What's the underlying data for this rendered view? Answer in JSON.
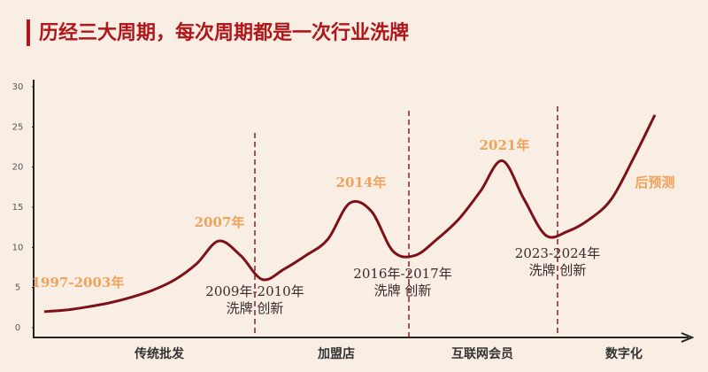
{
  "chart_data": {
    "type": "line",
    "title": "历经三大周期，每次周期都是一次行业洗牌",
    "categories": [
      null,
      null,
      null,
      null,
      null,
      null,
      null,
      null,
      null,
      null,
      null,
      null,
      null,
      null,
      null,
      null,
      null,
      null,
      null,
      null,
      null,
      null,
      null,
      null,
      null,
      null,
      null,
      null,
      null
    ],
    "series": [
      {
        "color": "#7d1018",
        "values": [
          2,
          2.2,
          2.6,
          3.1,
          3.8,
          4.7,
          6,
          8,
          10.8,
          9,
          6,
          7.3,
          9,
          11,
          15.5,
          14.5,
          9.5,
          9,
          11,
          13.5,
          17,
          20.8,
          16,
          11.5,
          12,
          13.5,
          16,
          21,
          26.5
        ]
      }
    ],
    "ylim": [
      0,
      30
    ],
    "yticks": [
      0,
      5,
      10,
      15,
      20,
      25,
      30
    ],
    "eras": [
      "传统批发",
      "加盟店",
      "互联网会员",
      "数字化"
    ],
    "annotations": [
      {
        "lines": [
          "1997-2003年"
        ],
        "color": "#f0a25a"
      },
      {
        "lines": [
          "2007年"
        ],
        "color": "#f0a25a"
      },
      {
        "lines": [
          "2009年-2010年",
          "洗牌 创新"
        ],
        "color": "#3a2a2a"
      },
      {
        "lines": [
          "2014年"
        ],
        "color": "#f0a25a"
      },
      {
        "lines": [
          "2016年-2017年",
          "洗牌 创新"
        ],
        "color": "#3a2a2a"
      },
      {
        "lines": [
          "2021年"
        ],
        "color": "#f0a25a"
      },
      {
        "lines": [
          "2023-2024年",
          "洗牌 创新"
        ],
        "color": "#3a2a2a"
      },
      {
        "lines": [
          "后预测"
        ],
        "color": "#f0a25a"
      }
    ]
  }
}
